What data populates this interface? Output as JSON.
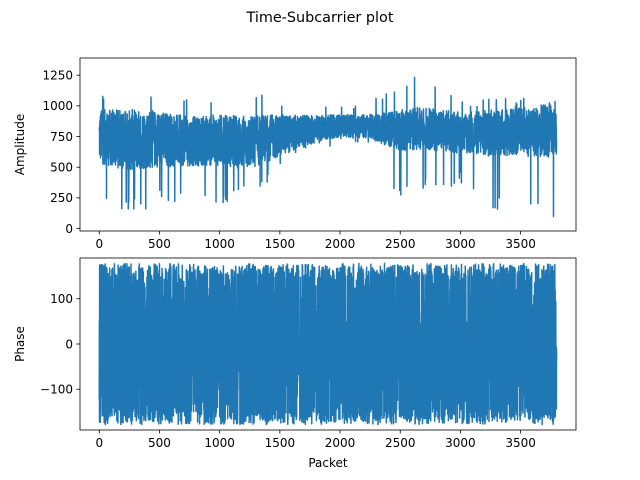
{
  "chart_data": {
    "type": "line",
    "title": "Time-Subcarrier plot",
    "color": "#1f77b4",
    "packet_count": 3800,
    "panels": [
      {
        "id": "amplitude",
        "ylabel": "Amplitude",
        "xlabel": "",
        "xlim": [
          -160,
          3960
        ],
        "ylim": [
          -20,
          1390
        ],
        "xticks": [
          0,
          500,
          1000,
          1500,
          2000,
          2500,
          3000,
          3500
        ],
        "xtick_labels": [
          "0",
          "500",
          "1000",
          "1500",
          "2000",
          "2500",
          "3000",
          "3500"
        ],
        "yticks": [
          0,
          250,
          500,
          750,
          1000,
          1250
        ],
        "ytick_labels": [
          "0",
          "250",
          "500",
          "750",
          "1000",
          "1250"
        ],
        "series": [
          {
            "values": [
              {
                "x": 0,
                "mean": 750,
                "spread": 220,
                "min": 250,
                "max": 1100
              },
              {
                "x": 250,
                "mean": 720,
                "spread": 250,
                "min": 110,
                "max": 1080
              },
              {
                "x": 500,
                "mean": 730,
                "spread": 230,
                "min": 200,
                "max": 1080
              },
              {
                "x": 750,
                "mean": 710,
                "spread": 200,
                "min": 200,
                "max": 1060
              },
              {
                "x": 1000,
                "mean": 720,
                "spread": 210,
                "min": 200,
                "max": 1090
              },
              {
                "x": 1250,
                "mean": 700,
                "spread": 220,
                "min": 250,
                "max": 1120
              },
              {
                "x": 1500,
                "mean": 760,
                "spread": 170,
                "min": 450,
                "max": 1060
              },
              {
                "x": 1750,
                "mean": 800,
                "spread": 120,
                "min": 620,
                "max": 1040
              },
              {
                "x": 2000,
                "mean": 840,
                "spread": 90,
                "min": 650,
                "max": 1000
              },
              {
                "x": 2250,
                "mean": 830,
                "spread": 100,
                "min": 650,
                "max": 1040
              },
              {
                "x": 2500,
                "mean": 800,
                "spread": 170,
                "min": 200,
                "max": 1150
              },
              {
                "x": 2680,
                "mean": 820,
                "spread": 170,
                "min": 300,
                "max": 1320
              },
              {
                "x": 3000,
                "mean": 780,
                "spread": 170,
                "min": 350,
                "max": 1040
              },
              {
                "x": 3250,
                "mean": 780,
                "spread": 190,
                "min": 130,
                "max": 1060
              },
              {
                "x": 3500,
                "mean": 790,
                "spread": 200,
                "min": 200,
                "max": 1060
              },
              {
                "x": 3800,
                "mean": 800,
                "spread": 220,
                "min": 50,
                "max": 1090
              }
            ]
          }
        ]
      },
      {
        "id": "phase",
        "ylabel": "Phase",
        "xlabel": "Packet",
        "xlim": [
          -160,
          3960
        ],
        "ylim": [
          -190,
          190
        ],
        "xticks": [
          0,
          500,
          1000,
          1500,
          2000,
          2500,
          3000,
          3500
        ],
        "xtick_labels": [
          "0",
          "500",
          "1000",
          "1500",
          "2000",
          "2500",
          "3000",
          "3500"
        ],
        "yticks": [
          -100,
          0,
          100
        ],
        "ytick_labels": [
          "−100",
          "0",
          "100"
        ],
        "series": [
          {
            "values": [
              {
                "x": 0,
                "mean": 0,
                "spread": 175,
                "min": -180,
                "max": 180
              },
              {
                "x": 3800,
                "mean": 0,
                "spread": 175,
                "min": -180,
                "max": 180
              }
            ]
          }
        ]
      }
    ]
  }
}
